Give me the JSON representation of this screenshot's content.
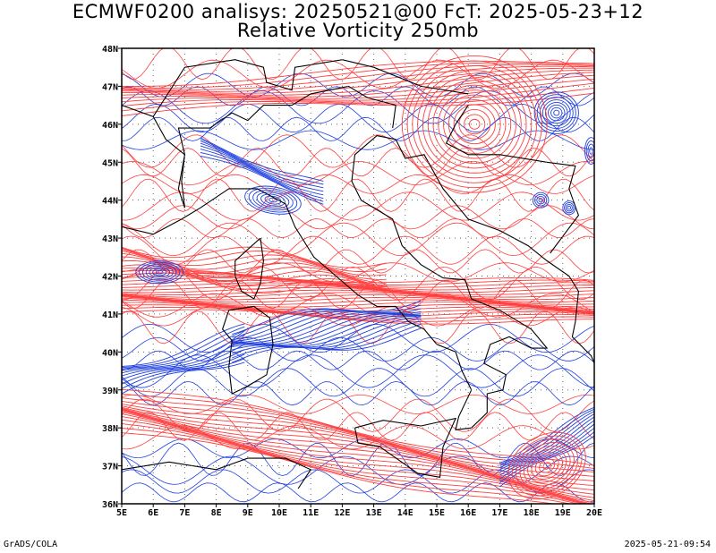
{
  "title_line1": "ECMWF0200 analisys: 20250521@00 FcT: 2025-05-23+12",
  "title_line2": "Relative Vorticity 250mb",
  "footer_left": "GrADS/COLA",
  "footer_right": "2025-05-21-09:54",
  "map": {
    "lon_range": [
      5,
      20
    ],
    "lat_range": [
      36,
      48
    ],
    "lat_labels": [
      "48N",
      "47N",
      "46N",
      "45N",
      "44N",
      "43N",
      "42N",
      "41N",
      "40N",
      "39N",
      "38N",
      "37N",
      "36N"
    ],
    "lon_labels": [
      "5E",
      "6E",
      "7E",
      "8E",
      "9E",
      "10E",
      "11E",
      "12E",
      "13E",
      "14E",
      "15E",
      "16E",
      "17E",
      "18E",
      "19E",
      "20E"
    ],
    "colors": {
      "positive_contour": "#ff4040",
      "negative_contour": "#2040e0",
      "coastline": "#000000",
      "grid": "#555555"
    },
    "contour_interval_legend": ""
  }
}
